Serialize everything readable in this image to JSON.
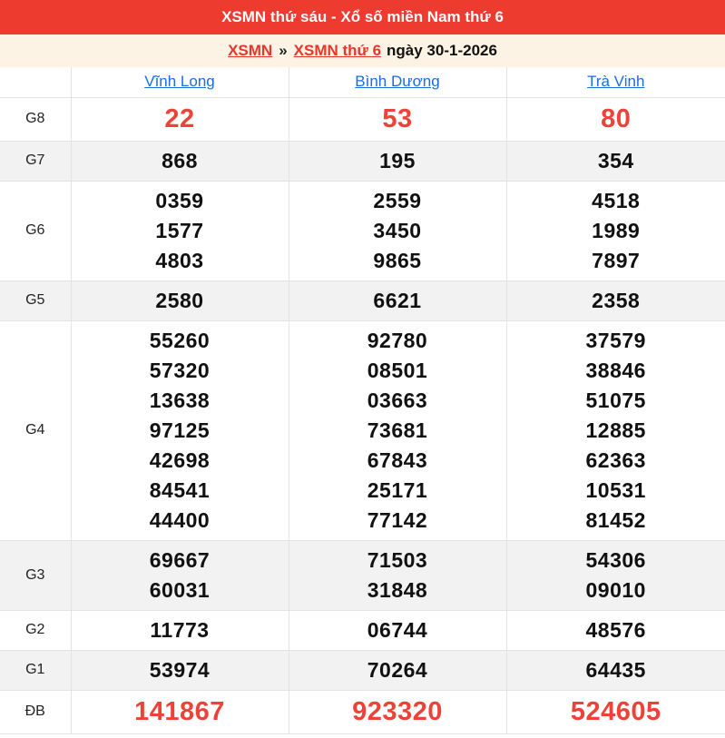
{
  "page": {
    "title": "XSMN thứ sáu - Xổ số miền Nam thứ 6",
    "breadcrumb": {
      "home_link": "XSMN",
      "separator": "»",
      "day_link": "XSMN thứ 6",
      "date_text": "ngày 30-1-2026"
    }
  },
  "colors": {
    "header_bg": "#ee3b30",
    "breadcrumb_bg": "#fdf3e5",
    "link_red": "#e7362b",
    "link_blue": "#1a6ee0",
    "number_black": "#111111",
    "number_red": "#ee4238",
    "stripe_gray": "#f2f2f2",
    "border_gray": "#e3e3e3"
  },
  "results_table": {
    "provinces": [
      "Vĩnh Long",
      "Bình Dương",
      "Trà Vinh"
    ],
    "rows": [
      {
        "label": "G8",
        "highlight": true,
        "cells": [
          [
            "22"
          ],
          [
            "53"
          ],
          [
            "80"
          ]
        ]
      },
      {
        "label": "G7",
        "highlight": false,
        "cells": [
          [
            "868"
          ],
          [
            "195"
          ],
          [
            "354"
          ]
        ]
      },
      {
        "label": "G6",
        "highlight": false,
        "cells": [
          [
            "0359",
            "1577",
            "4803"
          ],
          [
            "2559",
            "3450",
            "9865"
          ],
          [
            "4518",
            "1989",
            "7897"
          ]
        ]
      },
      {
        "label": "G5",
        "highlight": false,
        "cells": [
          [
            "2580"
          ],
          [
            "6621"
          ],
          [
            "2358"
          ]
        ]
      },
      {
        "label": "G4",
        "highlight": false,
        "cells": [
          [
            "55260",
            "57320",
            "13638",
            "97125",
            "42698",
            "84541",
            "44400"
          ],
          [
            "92780",
            "08501",
            "03663",
            "73681",
            "67843",
            "25171",
            "77142"
          ],
          [
            "37579",
            "38846",
            "51075",
            "12885",
            "62363",
            "10531",
            "81452"
          ]
        ]
      },
      {
        "label": "G3",
        "highlight": false,
        "cells": [
          [
            "69667",
            "60031"
          ],
          [
            "71503",
            "31848"
          ],
          [
            "54306",
            "09010"
          ]
        ]
      },
      {
        "label": "G2",
        "highlight": false,
        "cells": [
          [
            "11773"
          ],
          [
            "06744"
          ],
          [
            "48576"
          ]
        ]
      },
      {
        "label": "G1",
        "highlight": false,
        "cells": [
          [
            "53974"
          ],
          [
            "70264"
          ],
          [
            "64435"
          ]
        ]
      },
      {
        "label": "ĐB",
        "highlight": true,
        "cells": [
          [
            "141867"
          ],
          [
            "923320"
          ],
          [
            "524605"
          ]
        ]
      }
    ]
  }
}
